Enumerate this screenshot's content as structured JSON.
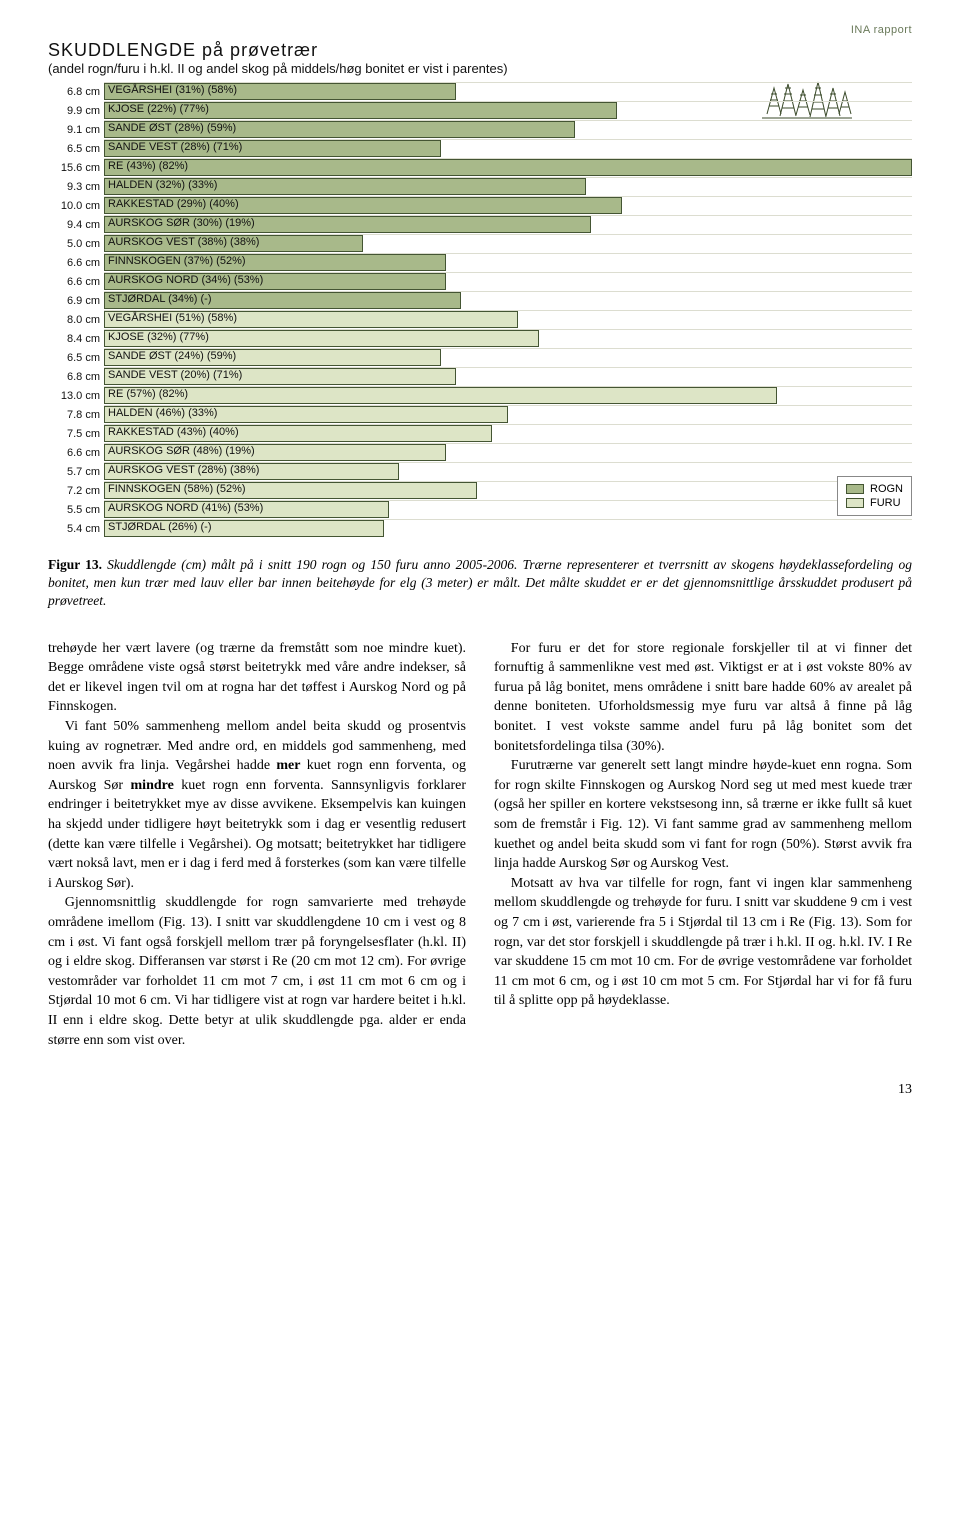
{
  "header_report": "INA rapport",
  "chart": {
    "title": "SKUDDLENGDE på prøvetrær",
    "subtitle": "(andel rogn/furu i h.kl. II og andel skog på middels/høg bonitet er vist i parentes)",
    "max_value": 15.6,
    "colors": {
      "rogn": "#a8b98a",
      "furu": "#dde5c6",
      "border": "#445533"
    },
    "legend": [
      {
        "name": "ROGN",
        "color": "#a8b98a"
      },
      {
        "name": "FURU",
        "color": "#dde5c6"
      }
    ],
    "rows": [
      {
        "value": 6.8,
        "display": "6.8 cm",
        "label": "VEGÅRSHEI (31%) (58%)",
        "series": "rogn"
      },
      {
        "value": 9.9,
        "display": "9.9 cm",
        "label": "KJOSE (22%) (77%)",
        "series": "rogn"
      },
      {
        "value": 9.1,
        "display": "9.1 cm",
        "label": "SANDE ØST (28%) (59%)",
        "series": "rogn"
      },
      {
        "value": 6.5,
        "display": "6.5 cm",
        "label": "SANDE VEST (28%) (71%)",
        "series": "rogn"
      },
      {
        "value": 15.6,
        "display": "15.6 cm",
        "label": "RE (43%) (82%)",
        "series": "rogn"
      },
      {
        "value": 9.3,
        "display": "9.3 cm",
        "label": "HALDEN (32%) (33%)",
        "series": "rogn"
      },
      {
        "value": 10.0,
        "display": "10.0 cm",
        "label": "RAKKESTAD (29%) (40%)",
        "series": "rogn"
      },
      {
        "value": 9.4,
        "display": "9.4 cm",
        "label": "AURSKOG SØR (30%) (19%)",
        "series": "rogn"
      },
      {
        "value": 5.0,
        "display": "5.0 cm",
        "label": "AURSKOG VEST (38%) (38%)",
        "series": "rogn"
      },
      {
        "value": 6.6,
        "display": "6.6 cm",
        "label": "FINNSKOGEN (37%) (52%)",
        "series": "rogn"
      },
      {
        "value": 6.6,
        "display": "6.6 cm",
        "label": "AURSKOG NORD (34%) (53%)",
        "series": "rogn"
      },
      {
        "value": 6.9,
        "display": "6.9 cm",
        "label": "STJØRDAL (34%) (-)",
        "series": "rogn"
      },
      {
        "value": 8.0,
        "display": "8.0 cm",
        "label": "VEGÅRSHEI (51%) (58%)",
        "series": "furu"
      },
      {
        "value": 8.4,
        "display": "8.4 cm",
        "label": "KJOSE (32%) (77%)",
        "series": "furu"
      },
      {
        "value": 6.5,
        "display": "6.5 cm",
        "label": "SANDE ØST (24%) (59%)",
        "series": "furu"
      },
      {
        "value": 6.8,
        "display": "6.8 cm",
        "label": "SANDE VEST (20%) (71%)",
        "series": "furu"
      },
      {
        "value": 13.0,
        "display": "13.0 cm",
        "label": "RE (57%) (82%)",
        "series": "furu"
      },
      {
        "value": 7.8,
        "display": "7.8 cm",
        "label": "HALDEN (46%) (33%)",
        "series": "furu"
      },
      {
        "value": 7.5,
        "display": "7.5 cm",
        "label": "RAKKESTAD (43%) (40%)",
        "series": "furu"
      },
      {
        "value": 6.6,
        "display": "6.6 cm",
        "label": "AURSKOG SØR (48%) (19%)",
        "series": "furu"
      },
      {
        "value": 5.7,
        "display": "5.7 cm",
        "label": "AURSKOG VEST (28%) (38%)",
        "series": "furu"
      },
      {
        "value": 7.2,
        "display": "7.2 cm",
        "label": "FINNSKOGEN (58%) (52%)",
        "series": "furu"
      },
      {
        "value": 5.5,
        "display": "5.5 cm",
        "label": "AURSKOG NORD (41%) (53%)",
        "series": "furu"
      },
      {
        "value": 5.4,
        "display": "5.4 cm",
        "label": "STJØRDAL (26%) (-)",
        "series": "furu"
      }
    ]
  },
  "caption_bold": "Figur 13.",
  "caption_rest": " Skuddlengde (cm) målt på i snitt 190 rogn og 150 furu anno 2005-2006. Trærne representerer et tverrsnitt av skogens høydeklassefordeling og bonitet, men kun trær med lauv eller bar innen beitehøyde for elg (3 meter) er målt. Det målte skuddet er er det gjennomsnittlige årsskuddet produsert på prøvetreet.",
  "body": {
    "p1": "trehøyde her vært lavere (og trærne da fremstått som noe mindre kuet). Begge områdene viste også størst beitetrykk med våre andre indekser, så det er likevel ingen tvil om at rogna har det tøffest i Aurskog Nord og på Finnskogen.",
    "p2a": "Vi fant 50% sammenheng mellom andel beita skudd og prosentvis kuing av rognetrær. Med andre ord, en middels god sammenheng, med noen avvik fra linja. Vegårshei hadde ",
    "p2b": "mer",
    "p2c": " kuet rogn enn forventa, og Aurskog Sør ",
    "p2d": "mindre",
    "p2e": " kuet rogn enn forventa. Sannsynligvis forklarer endringer i beitetrykket mye av disse avvikene. Eksempelvis kan kuingen ha skjedd under tidligere høyt beitetrykk som i dag er vesentlig redusert (dette kan være tilfelle i Vegårshei). Og motsatt; beitetrykket har tidligere vært nokså lavt, men er i dag i ferd med å forsterkes (som kan være tilfelle i Aurskog Sør).",
    "p3": "Gjennomsnittlig skuddlengde for rogn samvarierte med trehøyde områdene imellom (Fig. 13). I snitt var skuddlengdene 10 cm i vest og 8 cm i øst. Vi fant også forskjell mellom trær på foryngelsesflater (h.kl. II) og i eldre skog. Differansen var størst i Re (20 cm mot 12 cm). For øvrige vestområder var forholdet 11 cm mot 7 cm, i øst 11 cm mot 6 cm og i Stjørdal 10 mot 6 cm. Vi har tidligere vist at rogn var hardere beitet i h.kl. II enn i eldre skog. Dette betyr at ulik skuddlengde pga. alder er enda større enn som vist over.",
    "p4": "For furu er det for store regionale forskjeller til at vi finner det fornuftig å sammenlikne vest med øst. Viktigst er at i øst vokste 80% av furua på låg bonitet, mens områdene i snitt bare hadde 60% av arealet på denne boniteten. Uforholdsmessig mye furu var altså å finne på låg bonitet. I vest vokste samme andel furu på låg bonitet som det bonitetsfordelinga tilsa (30%).",
    "p5": "Furutrærne var generelt sett langt mindre høyde-kuet enn rogna. Som for rogn skilte Finnskogen og Aurskog Nord seg ut med mest kuede trær (også her spiller en kortere vekstsesong inn, så trærne er ikke fullt så kuet som de fremstår i Fig. 12). Vi fant samme grad av sammenheng mellom kuethet og andel beita skudd som vi fant for rogn (50%). Størst avvik fra linja hadde Aurskog Sør og Aurskog Vest.",
    "p6": "Motsatt av hva var tilfelle for rogn, fant vi ingen klar sammenheng mellom skuddlengde og trehøyde for furu. I snitt var skuddene 9 cm i vest og 7 cm i øst, varierende fra 5 i Stjørdal til 13 cm i Re (Fig. 13). Som for rogn, var det stor forskjell i skuddlengde på trær i h.kl. II og. h.kl. IV. I Re var skuddene 15 cm mot 10 cm. For de øvrige vestområdene var forholdet 11 cm mot 6 cm, og i øst 10 cm mot 5 cm. For Stjørdal har vi for få furu til å splitte opp på høydeklasse."
  },
  "pagenum": "13"
}
